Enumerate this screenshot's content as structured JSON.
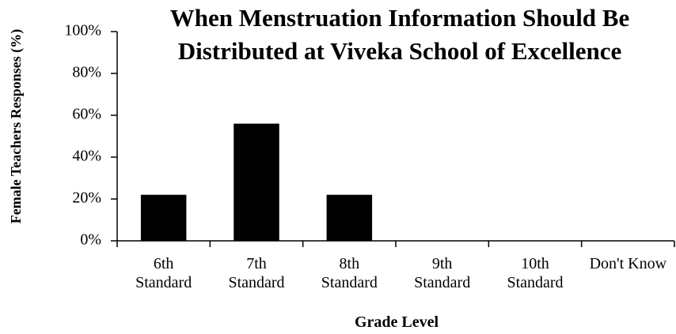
{
  "chart_data": {
    "type": "bar",
    "title": "When Menstruation Information Should Be Distributed at Viveka School of Excellence",
    "x_label": "Grade Level",
    "y_label": "Female Teachers Responses (%)",
    "categories": [
      "6th Standard",
      "7th Standard",
      "8th Standard",
      "9th Standard",
      "10th Standard",
      "Don't Know"
    ],
    "values": [
      22,
      56,
      22,
      0,
      0,
      0
    ],
    "color": "#000000",
    "ylim": [
      0,
      100
    ],
    "yticks": [
      {
        "value": 0,
        "label": "0%"
      },
      {
        "value": 20,
        "label": "20%"
      },
      {
        "value": 40,
        "label": "40%"
      },
      {
        "value": 60,
        "label": "60%"
      },
      {
        "value": 80,
        "label": "80%"
      },
      {
        "value": 100,
        "label": "100%"
      }
    ],
    "grid": false
  }
}
